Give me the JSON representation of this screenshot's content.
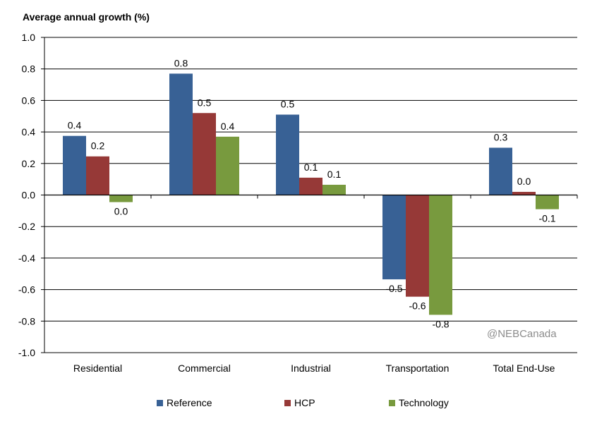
{
  "chart_data": {
    "type": "bar",
    "ylabel": "Average annual growth (%)",
    "ylim": [
      -1.0,
      1.0
    ],
    "ytick_step": 0.2,
    "grid": true,
    "legend_position": "bottom",
    "categories": [
      "Residential",
      "Commercial",
      "Industrial",
      "Transportation",
      "Total End-Use"
    ],
    "series": [
      {
        "name": "Reference",
        "color": "#386195",
        "values": [
          0.375,
          0.77,
          0.51,
          -0.535,
          0.3
        ],
        "labels": [
          "0.4",
          "0.8",
          "0.5",
          "-0.5",
          "0.3"
        ]
      },
      {
        "name": "HCP",
        "color": "#963937",
        "values": [
          0.245,
          0.52,
          0.11,
          -0.645,
          0.02
        ],
        "labels": [
          "0.2",
          "0.5",
          "0.1",
          "-0.6",
          "0.0"
        ]
      },
      {
        "name": "Technology",
        "color": "#789a3e",
        "values": [
          -0.045,
          0.37,
          0.065,
          -0.76,
          -0.09
        ],
        "labels": [
          "0.0",
          "0.4",
          "0.1",
          "-0.8",
          "-0.1"
        ]
      }
    ],
    "watermark": "@NEBCanada"
  }
}
